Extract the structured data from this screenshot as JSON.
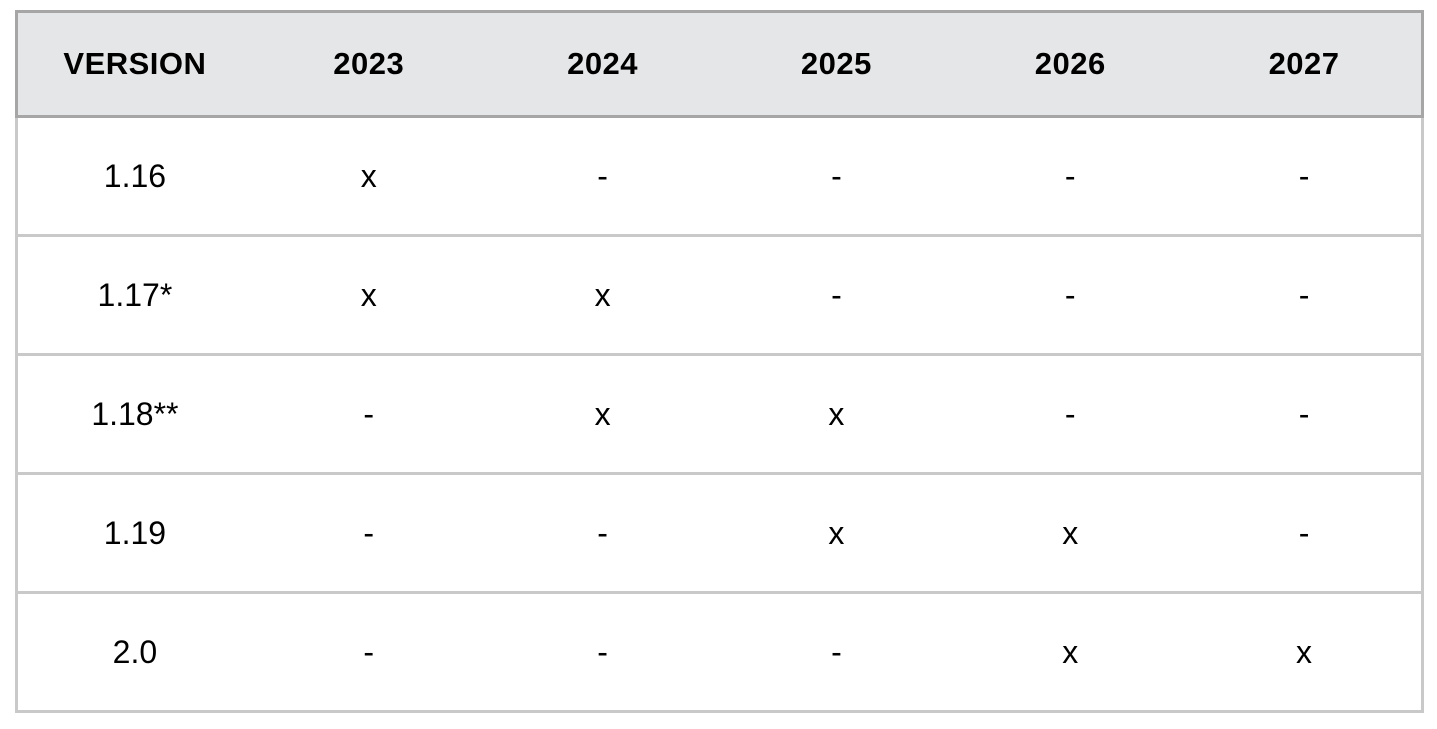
{
  "table": {
    "name": "version-support-matrix",
    "columns": [
      "VERSION",
      "2023",
      "2024",
      "2025",
      "2026",
      "2027"
    ],
    "rows": [
      {
        "version": "1.16",
        "marks": [
          "x",
          "-",
          "-",
          "-",
          "-"
        ]
      },
      {
        "version": "1.17*",
        "marks": [
          "x",
          "x",
          "-",
          "-",
          "-"
        ]
      },
      {
        "version": "1.18**",
        "marks": [
          "-",
          "x",
          "x",
          "-",
          "-"
        ]
      },
      {
        "version": "1.19",
        "marks": [
          "-",
          "-",
          "x",
          "x",
          "-"
        ]
      },
      {
        "version": "2.0",
        "marks": [
          "-",
          "-",
          "-",
          "x",
          "x"
        ]
      }
    ],
    "colors": {
      "header_bg": "#e5e6e7",
      "header_border": "#a6a6a6",
      "body_border": "#c9c9c9",
      "text": "#000000"
    }
  }
}
